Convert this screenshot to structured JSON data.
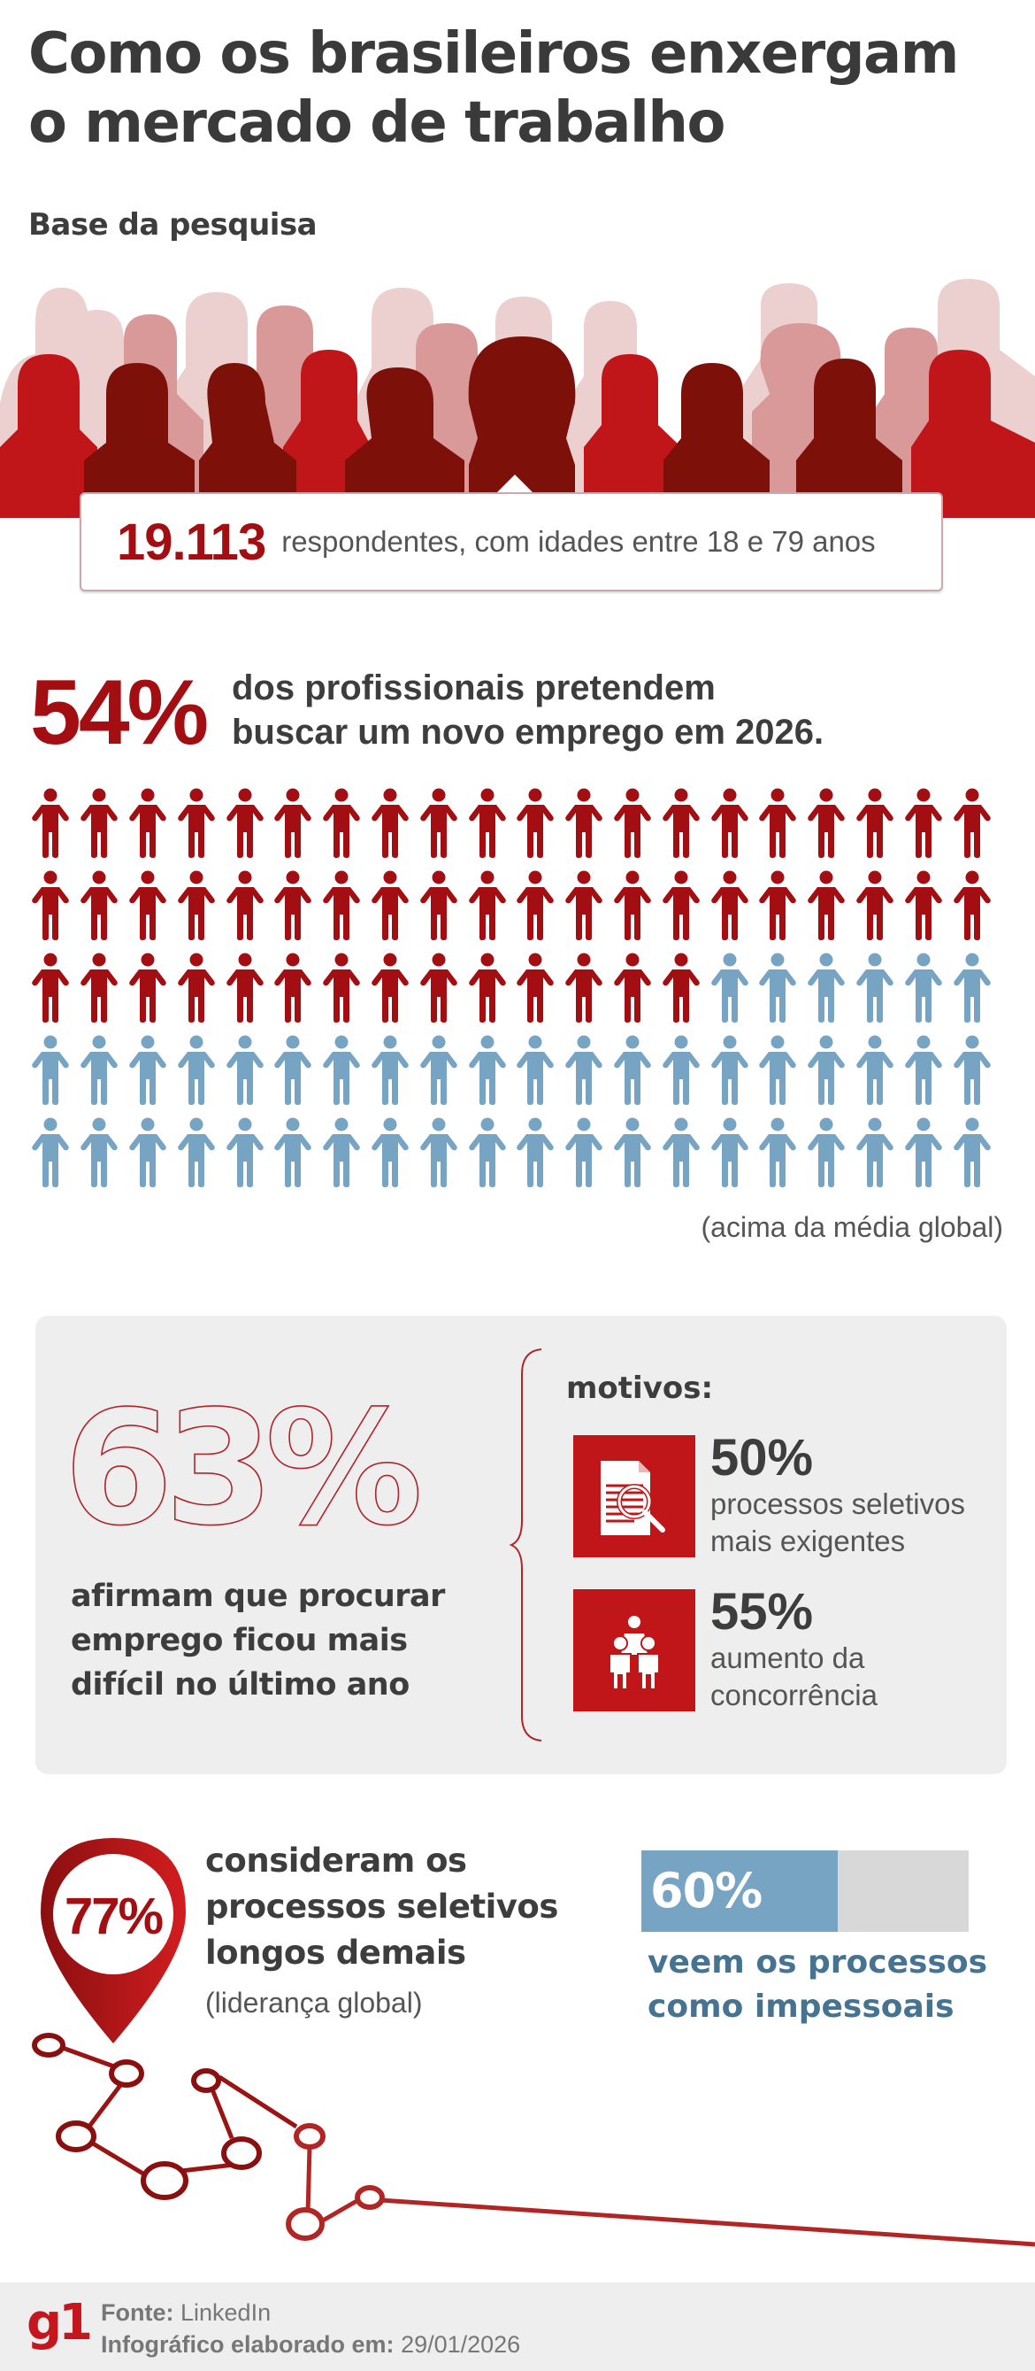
{
  "title": {
    "line1": "Como os brasileiros enxergam",
    "line2": "o mercado de trabalho"
  },
  "base": {
    "heading": "Base da pesquisa",
    "respondents": "19.113",
    "description": "respondentes, com idades entre 18 e 79 anos"
  },
  "stat54": {
    "value": "54%",
    "line1": "dos profissionais pretendem",
    "line2": "buscar um novo emprego em 2026.",
    "note": "(acima da média global)"
  },
  "stat63": {
    "value": "63%",
    "line1": "afirmam que procurar",
    "line2": "emprego ficou mais",
    "line3": "difícil no último ano",
    "reasons_heading": "motivos:",
    "reasons": [
      {
        "value": "50%",
        "line1": "processos seletivos",
        "line2": "mais exigentes",
        "icon": "document-search-icon"
      },
      {
        "value": "55%",
        "line1": "aumento da",
        "line2": "concorrência",
        "icon": "people-group-icon"
      }
    ]
  },
  "stat77": {
    "value": "77%",
    "line1": "consideram os",
    "line2": "processos seletivos",
    "line3": "longos demais",
    "note": "(liderança global)"
  },
  "stat60": {
    "value": "60%",
    "line1": "veem os processos",
    "line2": "como impessoais"
  },
  "footer": {
    "logo": "g1",
    "source_label": "Fonte:",
    "source_value": "LinkedIn",
    "date_label": "Infográfico elaborado em:",
    "date_value": "29/01/2026"
  },
  "colors": {
    "red_dark": "#a30e12",
    "red": "#c0161a",
    "blue": "#78a4c4",
    "blue_text": "#467391",
    "text": "#3d3d3d",
    "panel_gray": "#eeeeee"
  },
  "chart_data": {
    "type": "pictogram",
    "title": "54% dos profissionais pretendem buscar um novo emprego em 2026.",
    "total_icons": 100,
    "columns": 20,
    "rows": 5,
    "series": [
      {
        "name": "pretendem buscar novo emprego",
        "value": 54,
        "color": "#a30e12"
      },
      {
        "name": "demais",
        "value": 46,
        "color": "#78a4c4"
      }
    ],
    "stats": [
      {
        "label": "respondentes",
        "value": 19113
      },
      {
        "label": "pretendem buscar novo emprego em 2026",
        "value": 54,
        "unit": "%"
      },
      {
        "label": "procurar emprego ficou mais difícil no último ano",
        "value": 63,
        "unit": "%"
      },
      {
        "label": "processos seletivos mais exigentes",
        "value": 50,
        "unit": "%"
      },
      {
        "label": "aumento da concorrência",
        "value": 55,
        "unit": "%"
      },
      {
        "label": "consideram os processos seletivos longos demais",
        "value": 77,
        "unit": "%"
      },
      {
        "label": "veem os processos como impessoais",
        "value": 60,
        "unit": "%"
      }
    ]
  }
}
